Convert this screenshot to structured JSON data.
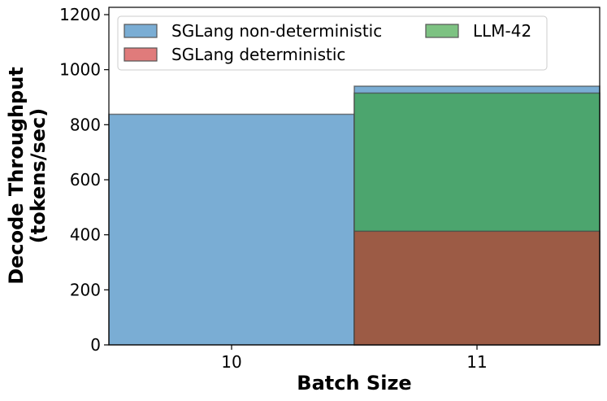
{
  "chart_data": {
    "type": "bar",
    "title": "",
    "xlabel": "Batch Size",
    "ylabel": "Decode Throughput\n(tokens/sec)",
    "ylabel_lines": [
      "Decode Throughput",
      "(tokens/sec)"
    ],
    "categories": [
      "10",
      "11"
    ],
    "ylim": [
      0,
      1200
    ],
    "yticks": [
      0,
      200,
      400,
      600,
      800,
      1000,
      1200
    ],
    "grid": false,
    "legend_placement": "top-left",
    "series": [
      {
        "name": "SGLang non-deterministic",
        "values": [
          838,
          940
        ],
        "legend_color": "#7aadd4",
        "bar_color": "#7aadd4"
      },
      {
        "name": "LLM-42",
        "values": [
          null,
          915
        ],
        "legend_color": "#7dc282",
        "bar_color": "#4ca56e"
      },
      {
        "name": "SGLang deterministic",
        "values": [
          null,
          413
        ],
        "legend_color": "#e07b7b",
        "bar_color": "#9c5b45"
      }
    ],
    "legend_order": [
      0,
      2,
      1
    ]
  }
}
